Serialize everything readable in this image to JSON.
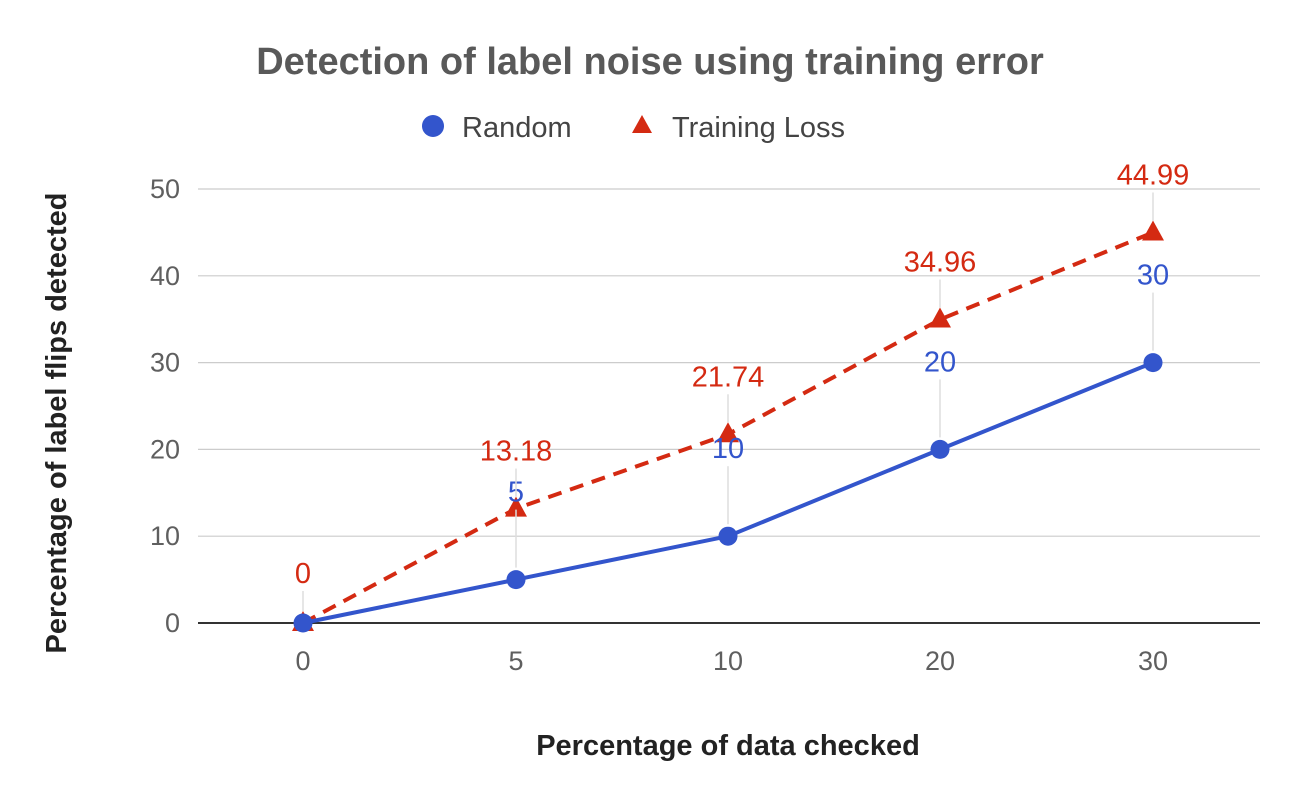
{
  "chart_data": {
    "type": "line",
    "title": "Detection of label noise using training error",
    "xlabel": "Percentage of data checked",
    "ylabel": "Percentage of label flips detected",
    "categories": [
      "0",
      "5",
      "10",
      "20",
      "30"
    ],
    "ylim": [
      0,
      50
    ],
    "yticks": [
      "0",
      "10",
      "20",
      "30",
      "40",
      "50"
    ],
    "grid": true,
    "legend_position": "top",
    "series": [
      {
        "name": "Random",
        "values": [
          0,
          5,
          10,
          20,
          30
        ],
        "labels": [
          "",
          "5",
          "10",
          "20",
          "30"
        ],
        "color": "#3355cc",
        "marker": "circle",
        "dash": "solid"
      },
      {
        "name": "Training Loss",
        "values": [
          0,
          13.18,
          21.74,
          34.96,
          44.99
        ],
        "labels": [
          "0",
          "13.18",
          "21.74",
          "34.96",
          "44.99"
        ],
        "color": "#d42a12",
        "marker": "triangle",
        "dash": "dashed"
      }
    ]
  }
}
